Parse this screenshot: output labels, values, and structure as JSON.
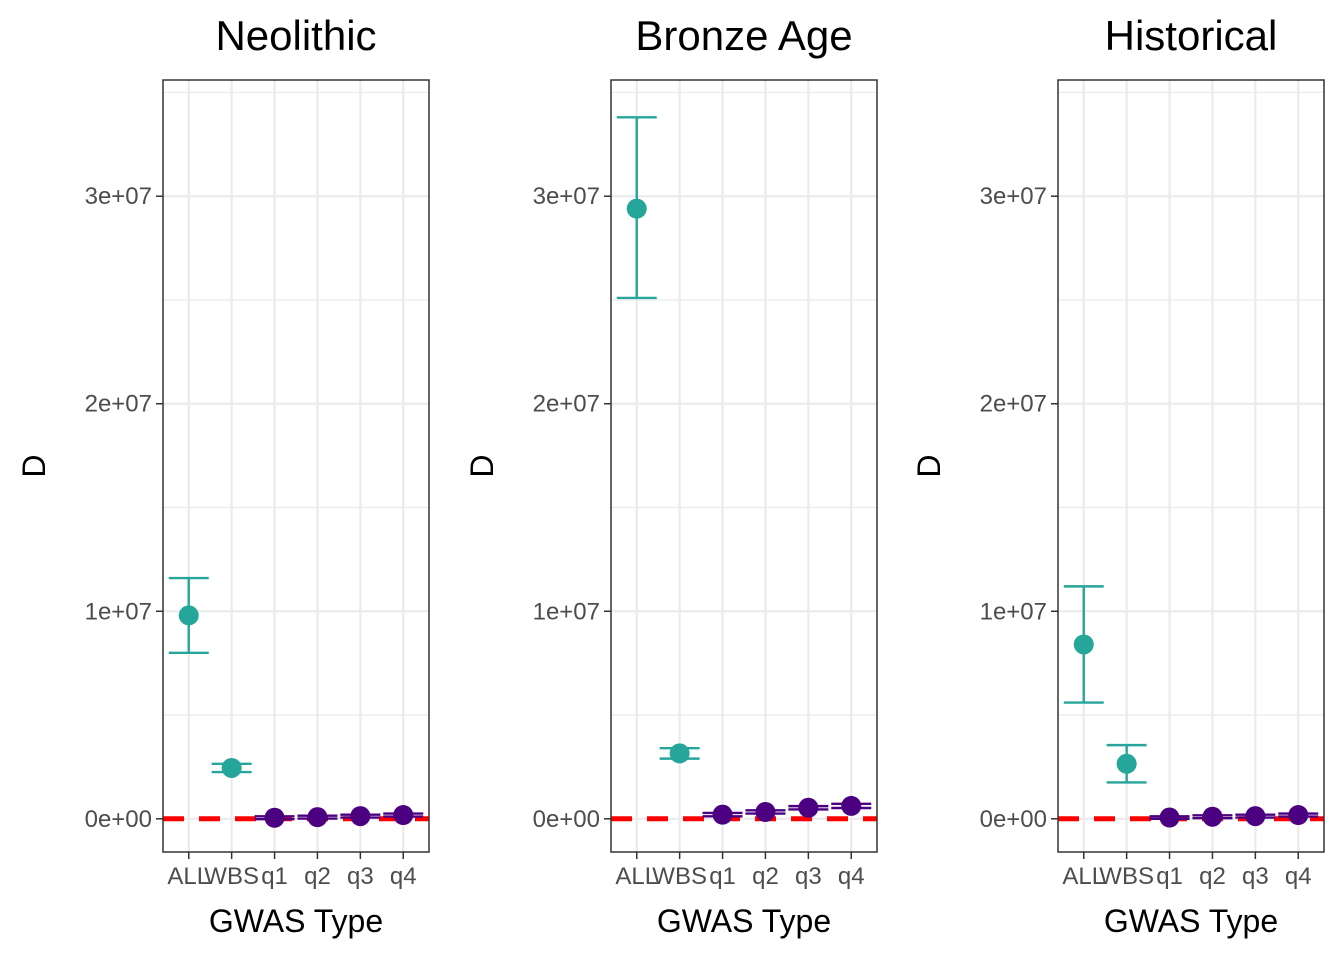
{
  "colors": {
    "aggregate": "#26a69a",
    "quartile": "#4b0082",
    "reference_line": "#ff0000",
    "grid": "#ebebeb",
    "panel_border": "#333333"
  },
  "chart_data": [
    {
      "type": "scatter",
      "title": "Neolithic",
      "xlabel": "GWAS Type",
      "ylabel": "D",
      "categories": [
        "ALL",
        "WBS",
        "q1",
        "q2",
        "q3",
        "q4"
      ],
      "yticks": [
        "0e+00",
        "1e+07",
        "2e+07",
        "3e+07"
      ],
      "ylim": [
        -1600000,
        35600000
      ],
      "reference_line": 0,
      "points": [
        {
          "x": "ALL",
          "y": 9800000,
          "lo": 8000000,
          "hi": 11600000,
          "group": "aggregate"
        },
        {
          "x": "WBS",
          "y": 2450000,
          "lo": 2250000,
          "hi": 2650000,
          "group": "aggregate"
        },
        {
          "x": "q1",
          "y": 50000,
          "lo": -20000,
          "hi": 120000,
          "group": "quartile"
        },
        {
          "x": "q2",
          "y": 80000,
          "lo": 10000,
          "hi": 150000,
          "group": "quartile"
        },
        {
          "x": "q3",
          "y": 130000,
          "lo": 60000,
          "hi": 200000,
          "group": "quartile"
        },
        {
          "x": "q4",
          "y": 180000,
          "lo": 110000,
          "hi": 250000,
          "group": "quartile"
        }
      ]
    },
    {
      "type": "scatter",
      "title": "Bronze Age",
      "xlabel": "GWAS Type",
      "ylabel": "D",
      "categories": [
        "ALL",
        "WBS",
        "q1",
        "q2",
        "q3",
        "q4"
      ],
      "yticks": [
        "0e+00",
        "1e+07",
        "2e+07",
        "3e+07"
      ],
      "ylim": [
        -1600000,
        35600000
      ],
      "reference_line": 0,
      "points": [
        {
          "x": "ALL",
          "y": 29400000,
          "lo": 25100000,
          "hi": 33800000,
          "group": "aggregate"
        },
        {
          "x": "WBS",
          "y": 3150000,
          "lo": 2900000,
          "hi": 3400000,
          "group": "aggregate"
        },
        {
          "x": "q1",
          "y": 200000,
          "lo": 120000,
          "hi": 280000,
          "group": "quartile"
        },
        {
          "x": "q2",
          "y": 330000,
          "lo": 250000,
          "hi": 410000,
          "group": "quartile"
        },
        {
          "x": "q3",
          "y": 530000,
          "lo": 450000,
          "hi": 610000,
          "group": "quartile"
        },
        {
          "x": "q4",
          "y": 620000,
          "lo": 520000,
          "hi": 720000,
          "group": "quartile"
        }
      ]
    },
    {
      "type": "scatter",
      "title": "Historical",
      "xlabel": "GWAS Type",
      "ylabel": "D",
      "categories": [
        "ALL",
        "WBS",
        "q1",
        "q2",
        "q3",
        "q4"
      ],
      "yticks": [
        "0e+00",
        "1e+07",
        "2e+07",
        "3e+07"
      ],
      "ylim": [
        -1600000,
        35600000
      ],
      "reference_line": 0,
      "points": [
        {
          "x": "ALL",
          "y": 8400000,
          "lo": 5600000,
          "hi": 11200000,
          "group": "aggregate"
        },
        {
          "x": "WBS",
          "y": 2650000,
          "lo": 1750000,
          "hi": 3550000,
          "group": "aggregate"
        },
        {
          "x": "q1",
          "y": 60000,
          "lo": 0,
          "hi": 120000,
          "group": "quartile"
        },
        {
          "x": "q2",
          "y": 100000,
          "lo": 30000,
          "hi": 170000,
          "group": "quartile"
        },
        {
          "x": "q3",
          "y": 130000,
          "lo": 60000,
          "hi": 200000,
          "group": "quartile"
        },
        {
          "x": "q4",
          "y": 180000,
          "lo": 110000,
          "hi": 250000,
          "group": "quartile"
        }
      ]
    }
  ]
}
